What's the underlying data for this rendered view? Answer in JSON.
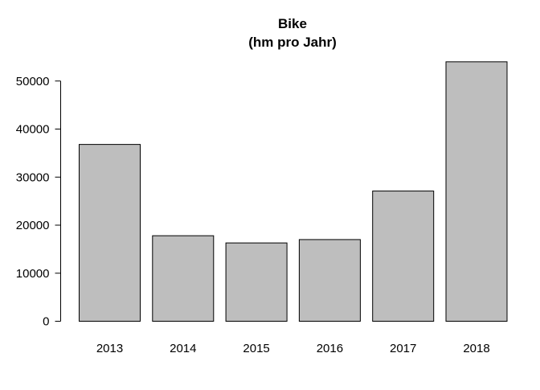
{
  "chart_data": {
    "type": "bar",
    "title": "Bike",
    "subtitle": "(hm pro Jahr)",
    "categories": [
      "2013",
      "2014",
      "2015",
      "2016",
      "2017",
      "2018"
    ],
    "values": [
      36800,
      17800,
      16300,
      17000,
      27100,
      54000
    ],
    "ylim": [
      0,
      54000
    ],
    "yticks": [
      0,
      10000,
      20000,
      30000,
      40000,
      50000
    ],
    "ytick_labels": [
      "0",
      "10000",
      "20000",
      "30000",
      "40000",
      "50000"
    ],
    "xlabel": "",
    "ylabel": "",
    "grid": false,
    "legend": "none",
    "bar_color": "#bebebe",
    "bar_edge_color": "#000000"
  }
}
